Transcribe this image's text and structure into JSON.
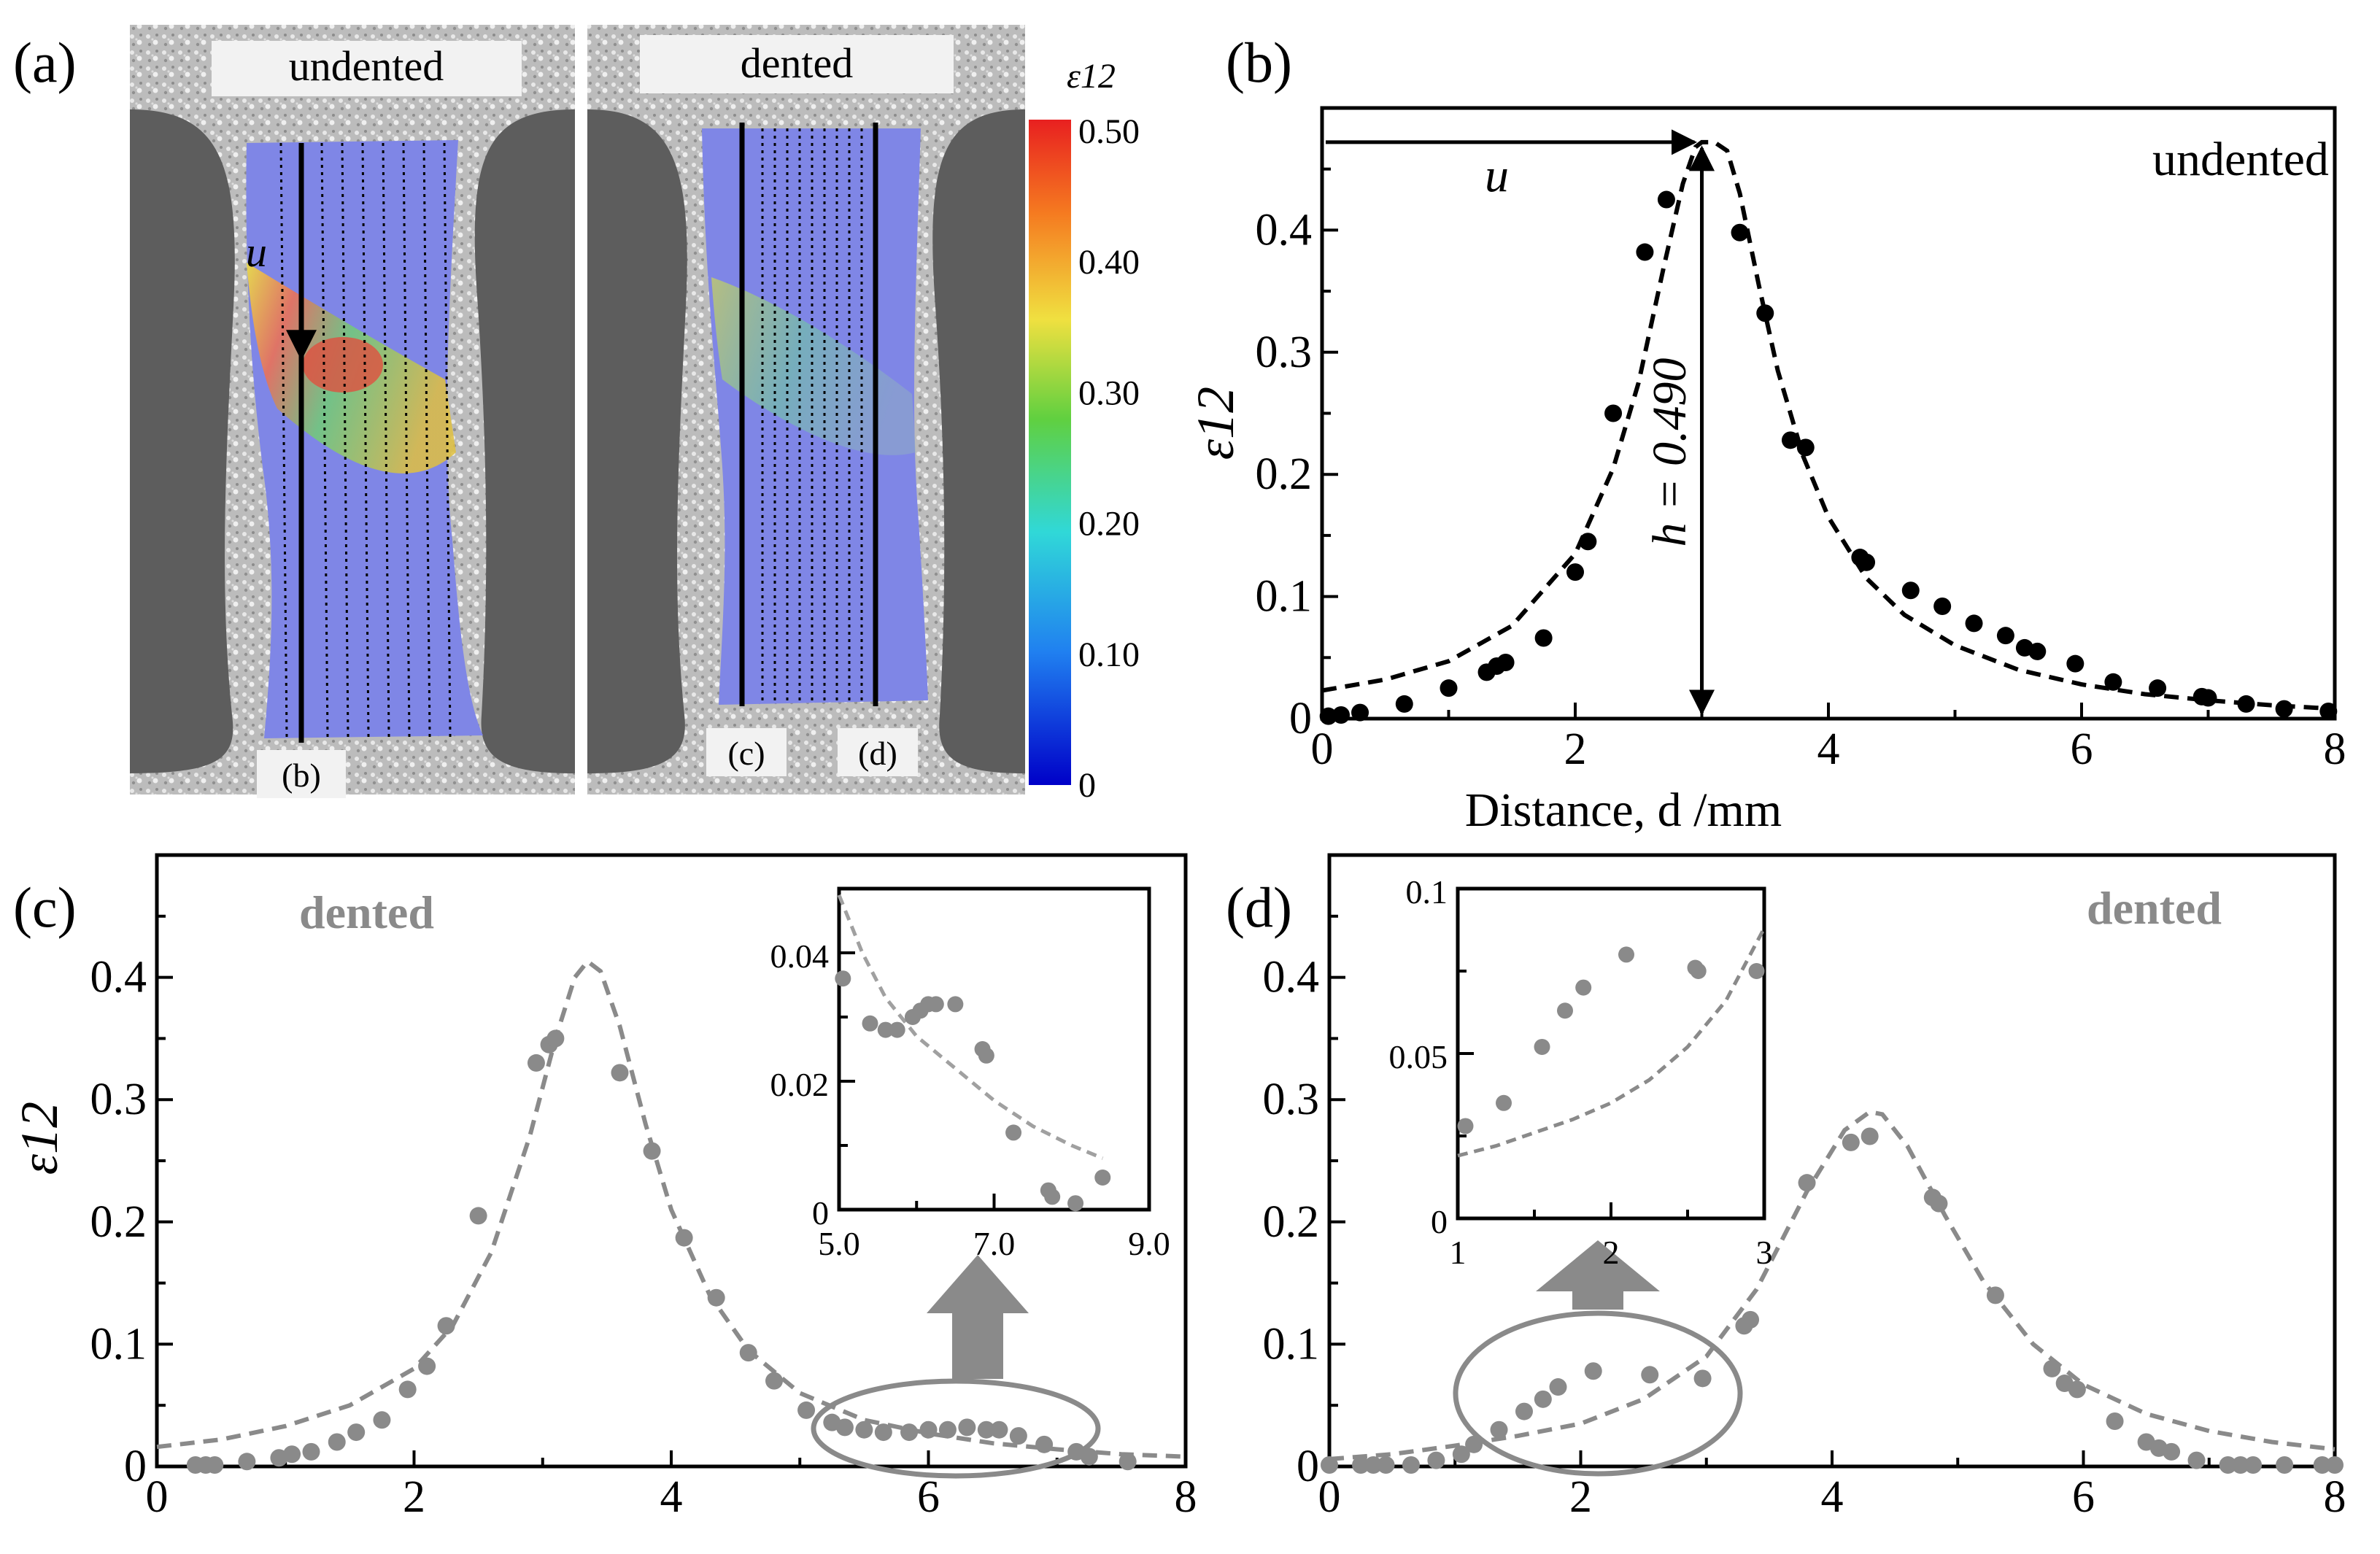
{
  "panel_labels": {
    "a": "(a)",
    "b": "(b)",
    "c": "(c)",
    "d": "(d)"
  },
  "images": {
    "undented_label": "undented",
    "dented_label": "dented",
    "line_label_b": "(b)",
    "line_label_c": "(c)",
    "line_label_d": "(d)",
    "arrow_label": "u",
    "colorbar_title": "ε12",
    "colorbar_ticks": [
      "0.50",
      "0.40",
      "0.30",
      "0.20",
      "0.10",
      "0"
    ],
    "colors": {
      "red": "#e8302a",
      "yellow": "#f0e040",
      "green": "#40c040",
      "cyan": "#30d0e0",
      "blue": "#0000cc",
      "specimen_blue": "#7f86e6",
      "speckle": "#c7c7c7",
      "grip": "#6e6e6e"
    }
  },
  "chart_data": [
    {
      "id": "b",
      "type": "scatter",
      "title": "undented",
      "xlabel": "Distance,  d /mm",
      "ylabel": "ε12",
      "xlim": [
        0,
        8
      ],
      "ylim": [
        0,
        0.5
      ],
      "xticks": [
        "0",
        "2",
        "4",
        "6",
        "8"
      ],
      "yticks": [
        "0",
        "0.1",
        "0.2",
        "0.3",
        "0.4"
      ],
      "annotation_u": "u",
      "annotation_h": "h = 0.490",
      "peak_x": 3.0,
      "point_color": "#000000",
      "x": [
        0.05,
        0.15,
        0.3,
        0.65,
        1.0,
        1.3,
        1.38,
        1.45,
        1.75,
        2.0,
        2.1,
        2.3,
        2.55,
        2.72,
        3.3,
        3.5,
        3.7,
        3.82,
        4.25,
        4.3,
        4.65,
        4.9,
        5.15,
        5.4,
        5.55,
        5.65,
        5.95,
        6.25,
        6.6,
        6.95,
        7.0,
        7.3,
        7.6,
        7.95
      ],
      "y": [
        0.002,
        0.003,
        0.005,
        0.012,
        0.025,
        0.038,
        0.043,
        0.046,
        0.066,
        0.12,
        0.145,
        0.25,
        0.382,
        0.425,
        0.398,
        0.332,
        0.228,
        0.222,
        0.132,
        0.128,
        0.105,
        0.092,
        0.078,
        0.068,
        0.058,
        0.055,
        0.045,
        0.03,
        0.025,
        0.018,
        0.017,
        0.012,
        0.008,
        0.006
      ],
      "fit_x": [
        0,
        0.5,
        1.0,
        1.5,
        2.0,
        2.3,
        2.5,
        2.7,
        2.85,
        2.95,
        3.0,
        3.1,
        3.2,
        3.3,
        3.45,
        3.6,
        3.8,
        4.0,
        4.3,
        4.6,
        5.0,
        5.5,
        6.0,
        6.5,
        7.0,
        7.5,
        8.0
      ],
      "fit_y": [
        0.023,
        0.032,
        0.047,
        0.076,
        0.135,
        0.205,
        0.275,
        0.37,
        0.438,
        0.468,
        0.472,
        0.472,
        0.465,
        0.43,
        0.355,
        0.285,
        0.215,
        0.165,
        0.115,
        0.085,
        0.06,
        0.04,
        0.028,
        0.02,
        0.015,
        0.011,
        0.008
      ]
    },
    {
      "id": "c",
      "type": "scatter",
      "title": "dented",
      "xlabel": "",
      "ylabel": "ε12",
      "xlim": [
        0,
        8
      ],
      "ylim": [
        0,
        0.5
      ],
      "xticks": [
        "0",
        "2",
        "4",
        "6",
        "8"
      ],
      "yticks": [
        "0",
        "0.1",
        "0.2",
        "0.3",
        "0.4"
      ],
      "point_color": "#8a8a8a",
      "x": [
        0.3,
        0.38,
        0.45,
        0.7,
        0.95,
        1.05,
        1.2,
        1.4,
        1.55,
        1.75,
        1.95,
        2.1,
        2.25,
        2.5,
        2.95,
        3.05,
        3.1,
        3.6,
        3.85,
        4.1,
        4.35,
        4.6,
        4.8,
        5.05,
        5.25,
        5.35,
        5.5,
        5.65,
        5.85,
        6.0,
        6.15,
        6.3,
        6.45,
        6.55,
        6.7,
        6.9,
        7.15,
        7.25,
        7.55
      ],
      "y": [
        0.0,
        0.0,
        0.0,
        0.004,
        0.007,
        0.01,
        0.012,
        0.02,
        0.028,
        0.038,
        0.063,
        0.082,
        0.115,
        0.205,
        0.33,
        0.345,
        0.35,
        0.322,
        0.258,
        0.187,
        0.138,
        0.093,
        0.07,
        0.046,
        0.036,
        0.032,
        0.03,
        0.028,
        0.028,
        0.03,
        0.03,
        0.032,
        0.03,
        0.03,
        0.025,
        0.018,
        0.012,
        0.008,
        0.004
      ],
      "fit_x": [
        0,
        0.5,
        1.0,
        1.5,
        2.0,
        2.3,
        2.6,
        2.9,
        3.1,
        3.25,
        3.35,
        3.45,
        3.6,
        3.8,
        4.0,
        4.3,
        4.6,
        5.0,
        5.5,
        6.0,
        6.5,
        7.0,
        7.5,
        8.0
      ],
      "fit_y": [
        0.016,
        0.022,
        0.033,
        0.05,
        0.08,
        0.115,
        0.175,
        0.27,
        0.35,
        0.4,
        0.413,
        0.405,
        0.36,
        0.28,
        0.21,
        0.14,
        0.095,
        0.06,
        0.038,
        0.027,
        0.019,
        0.014,
        0.01,
        0.008
      ],
      "inset": {
        "xlim": [
          5.0,
          9.0
        ],
        "ylim": [
          0,
          0.05
        ],
        "xticks": [
          "5.0",
          "7.0",
          "9.0"
        ],
        "yticks": [
          "0",
          "0.02",
          "0.04"
        ],
        "x": [
          5.05,
          5.4,
          5.6,
          5.75,
          5.95,
          6.05,
          6.15,
          6.25,
          6.5,
          6.85,
          6.9,
          7.25,
          7.7,
          7.75,
          8.05,
          8.4
        ],
        "y": [
          0.036,
          0.029,
          0.028,
          0.028,
          0.03,
          0.031,
          0.032,
          0.032,
          0.032,
          0.025,
          0.024,
          0.012,
          0.003,
          0.002,
          0.001,
          0.005
        ],
        "fit_x": [
          5.0,
          5.3,
          5.6,
          6.0,
          6.5,
          7.0,
          7.5,
          8.0,
          8.4
        ],
        "fit_y": [
          0.049,
          0.04,
          0.033,
          0.027,
          0.022,
          0.017,
          0.013,
          0.01,
          0.008
        ]
      }
    },
    {
      "id": "d",
      "type": "scatter",
      "title": "dented",
      "xlabel": "",
      "ylabel": "",
      "xlim": [
        0,
        8
      ],
      "ylim": [
        0,
        0.5
      ],
      "xticks": [
        "0",
        "2",
        "4",
        "6",
        "8"
      ],
      "yticks": [
        "0",
        "0.1",
        "0.2",
        "0.3",
        "0.4"
      ],
      "point_color": "#8a8a8a",
      "x": [
        0.0,
        0.25,
        0.35,
        0.45,
        0.65,
        0.85,
        1.05,
        1.15,
        1.35,
        1.55,
        1.7,
        1.82,
        2.1,
        2.55,
        2.97,
        3.3,
        3.35,
        3.8,
        4.15,
        4.3,
        4.8,
        4.85,
        5.3,
        5.75,
        5.85,
        5.95,
        6.25,
        6.5,
        6.6,
        6.7,
        6.9,
        7.15,
        7.25,
        7.35,
        7.6,
        7.9,
        8.0
      ],
      "y": [
        -0.005,
        -0.003,
        -0.003,
        -0.002,
        -0.001,
        0.005,
        0.01,
        0.018,
        0.03,
        0.045,
        0.055,
        0.065,
        0.078,
        0.075,
        0.072,
        0.115,
        0.12,
        0.232,
        0.265,
        0.27,
        0.22,
        0.215,
        0.14,
        0.08,
        0.068,
        0.063,
        0.037,
        0.02,
        0.015,
        0.012,
        0.005,
        0.001,
        -0.001,
        -0.002,
        -0.003,
        -0.003,
        -0.004
      ],
      "fit_x": [
        0,
        0.5,
        1.0,
        1.5,
        2.0,
        2.5,
        3.0,
        3.4,
        3.8,
        4.1,
        4.3,
        4.4,
        4.6,
        4.9,
        5.2,
        5.6,
        6.0,
        6.5,
        7.0,
        7.5,
        8.0
      ],
      "fit_y": [
        0.006,
        0.01,
        0.017,
        0.025,
        0.035,
        0.055,
        0.09,
        0.145,
        0.225,
        0.275,
        0.29,
        0.288,
        0.262,
        0.205,
        0.152,
        0.1,
        0.067,
        0.043,
        0.029,
        0.02,
        0.014
      ],
      "inset": {
        "xlim": [
          1,
          3
        ],
        "ylim": [
          0,
          0.1
        ],
        "xticks": [
          "1",
          "2",
          "3"
        ],
        "yticks": [
          "0",
          "0.05",
          "0.1"
        ],
        "x": [
          1.05,
          1.3,
          1.55,
          1.7,
          1.82,
          2.1,
          2.55,
          2.57,
          2.95
        ],
        "y": [
          0.028,
          0.035,
          0.052,
          0.063,
          0.07,
          0.08,
          0.076,
          0.075,
          0.075
        ],
        "fit_x": [
          1.0,
          1.25,
          1.5,
          1.75,
          2.0,
          2.25,
          2.5,
          2.75,
          3.0
        ],
        "fit_y": [
          0.019,
          0.022,
          0.026,
          0.03,
          0.035,
          0.042,
          0.052,
          0.066,
          0.088
        ]
      }
    }
  ]
}
